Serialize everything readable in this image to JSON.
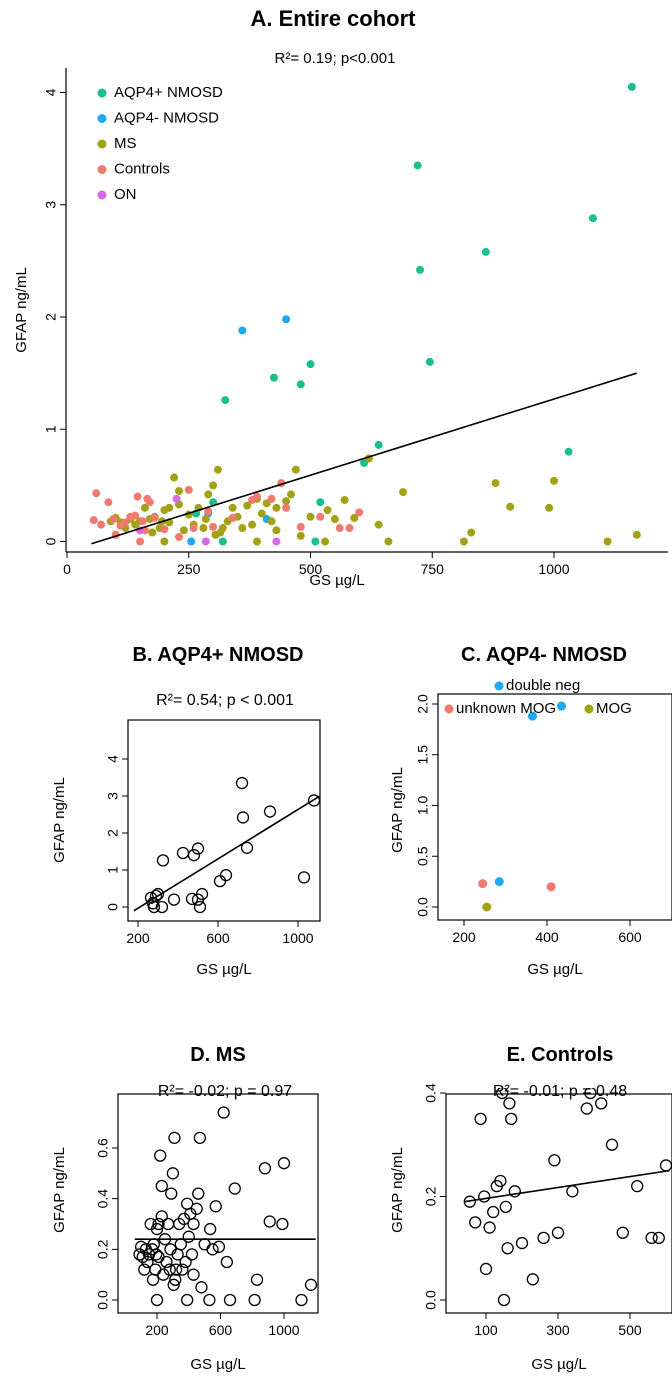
{
  "chart_data": [
    {
      "id": "A",
      "type": "scatter",
      "title": "A. Entire cohort",
      "subtitle": "R²= 0.19; p<0.001",
      "xlabel": "GS µg/L",
      "ylabel": "GFAP ng/mL",
      "xlim": [
        0,
        1200
      ],
      "ylim": [
        -0.1,
        4.2
      ],
      "xticks": [
        0,
        250,
        500,
        750,
        1000
      ],
      "yticks": [
        0,
        1,
        2,
        3,
        4
      ],
      "legend_position": "top-left",
      "regression_line": {
        "x": [
          50,
          1170
        ],
        "y": [
          -0.02,
          1.5
        ]
      },
      "series": [
        {
          "name": "AQP4+ NMOSD",
          "color": "#1bbf8f",
          "points": [
            [
              1160,
              4.05
            ],
            [
              720,
              3.35
            ],
            [
              1080,
              2.88
            ],
            [
              860,
              2.58
            ],
            [
              725,
              2.42
            ],
            [
              745,
              1.6
            ],
            [
              500,
              1.58
            ],
            [
              480,
              1.4
            ],
            [
              425,
              1.46
            ],
            [
              325,
              1.26
            ],
            [
              640,
              0.86
            ],
            [
              610,
              0.7
            ],
            [
              1030,
              0.8
            ],
            [
              520,
              0.35
            ],
            [
              300,
              0.35
            ],
            [
              320,
              0.0
            ],
            [
              510,
              0.0
            ],
            [
              265,
              0.25
            ]
          ]
        },
        {
          "name": "AQP4- NMOSD",
          "color": "#1fa9ee",
          "points": [
            [
              360,
              1.88
            ],
            [
              450,
              1.98
            ],
            [
              290,
              0.25
            ],
            [
              410,
              0.2
            ],
            [
              255,
              0.0
            ]
          ]
        },
        {
          "name": "MS",
          "color": "#a2a214",
          "points": [
            [
              1170,
              0.06
            ],
            [
              1110,
              0.0
            ],
            [
              1000,
              0.54
            ],
            [
              990,
              0.3
            ],
            [
              910,
              0.31
            ],
            [
              880,
              0.52
            ],
            [
              830,
              0.08
            ],
            [
              815,
              0.0
            ],
            [
              690,
              0.44
            ],
            [
              660,
              0.0
            ],
            [
              640,
              0.15
            ],
            [
              620,
              0.74
            ],
            [
              590,
              0.21
            ],
            [
              570,
              0.37
            ],
            [
              550,
              0.2
            ],
            [
              535,
              0.28
            ],
            [
              530,
              0.0
            ],
            [
              500,
              0.22
            ],
            [
              470,
              0.64
            ],
            [
              460,
              0.42
            ],
            [
              450,
              0.36
            ],
            [
              430,
              0.3
            ],
            [
              420,
              0.18
            ],
            [
              410,
              0.34
            ],
            [
              400,
              0.25
            ],
            [
              390,
              0.38
            ],
            [
              380,
              0.15
            ],
            [
              370,
              0.32
            ],
            [
              360,
              0.12
            ],
            [
              350,
              0.22
            ],
            [
              340,
              0.3
            ],
            [
              330,
              0.18
            ],
            [
              320,
              0.12
            ],
            [
              310,
              0.64
            ],
            [
              305,
              0.06
            ],
            [
              300,
              0.5
            ],
            [
              290,
              0.42
            ],
            [
              285,
              0.2
            ],
            [
              270,
              0.3
            ],
            [
              260,
              0.15
            ],
            [
              250,
              0.24
            ],
            [
              240,
              0.1
            ],
            [
              230,
              0.45
            ],
            [
              220,
              0.57
            ],
            [
              210,
              0.3
            ],
            [
              200,
              0.28
            ],
            [
              195,
              0.18
            ],
            [
              190,
              0.12
            ],
            [
              180,
              0.22
            ],
            [
              175,
              0.08
            ],
            [
              170,
              0.2
            ],
            [
              160,
              0.3
            ],
            [
              150,
              0.18
            ],
            [
              140,
              0.15
            ],
            [
              130,
              0.2
            ],
            [
              120,
              0.12
            ],
            [
              110,
              0.17
            ],
            [
              100,
              0.21
            ],
            [
              90,
              0.18
            ],
            [
              280,
              0.12
            ],
            [
              315,
              0.08
            ],
            [
              390,
              0.0
            ],
            [
              430,
              0.1
            ],
            [
              480,
              0.05
            ],
            [
              230,
              0.33
            ],
            [
              210,
              0.17
            ],
            [
              200,
              0.0
            ]
          ]
        },
        {
          "name": "Controls",
          "color": "#f07a70",
          "points": [
            [
              60,
              0.43
            ],
            [
              55,
              0.19
            ],
            [
              70,
              0.15
            ],
            [
              85,
              0.35
            ],
            [
              95,
              0.2
            ],
            [
              100,
              0.06
            ],
            [
              110,
              0.14
            ],
            [
              120,
              0.17
            ],
            [
              130,
              0.22
            ],
            [
              140,
              0.23
            ],
            [
              145,
              0.4
            ],
            [
              150,
              0.0
            ],
            [
              155,
              0.18
            ],
            [
              160,
              0.1
            ],
            [
              165,
              0.38
            ],
            [
              170,
              0.35
            ],
            [
              180,
              0.21
            ],
            [
              200,
              0.11
            ],
            [
              230,
              0.04
            ],
            [
              250,
              0.46
            ],
            [
              260,
              0.12
            ],
            [
              290,
              0.27
            ],
            [
              300,
              0.13
            ],
            [
              340,
              0.21
            ],
            [
              380,
              0.37
            ],
            [
              390,
              0.4
            ],
            [
              420,
              0.38
            ],
            [
              440,
              0.52
            ],
            [
              450,
              0.3
            ],
            [
              480,
              0.13
            ],
            [
              520,
              0.22
            ],
            [
              560,
              0.12
            ],
            [
              580,
              0.12
            ],
            [
              600,
              0.26
            ]
          ]
        },
        {
          "name": "ON",
          "color": "#d96ae5",
          "points": [
            [
              150,
              0.1
            ],
            [
              225,
              0.38
            ],
            [
              285,
              0.0
            ],
            [
              430,
              0.0
            ]
          ]
        }
      ]
    },
    {
      "id": "B",
      "type": "scatter",
      "title": "B. AQP4+ NMOSD",
      "subtitle": "R²= 0.54; p < 0.001",
      "xlabel": "GS µg/L",
      "ylabel": "GFAP ng/mL",
      "xlim": [
        180,
        1190
      ],
      "ylim": [
        -0.1,
        4.2
      ],
      "xticks": [
        200,
        600,
        1000
      ],
      "yticks": [
        0,
        1,
        2,
        3,
        4
      ],
      "regression_line": {
        "x": [
          180,
          1190
        ],
        "y": [
          -0.1,
          3.27
        ]
      },
      "points": [
        [
          1160,
          4.05
        ],
        [
          720,
          3.35
        ],
        [
          1080,
          2.88
        ],
        [
          860,
          2.58
        ],
        [
          725,
          2.42
        ],
        [
          745,
          1.6
        ],
        [
          500,
          1.58
        ],
        [
          480,
          1.4
        ],
        [
          425,
          1.46
        ],
        [
          325,
          1.26
        ],
        [
          640,
          0.86
        ],
        [
          610,
          0.7
        ],
        [
          1030,
          0.8
        ],
        [
          520,
          0.35
        ],
        [
          300,
          0.35
        ],
        [
          320,
          0.0
        ],
        [
          510,
          0.0
        ],
        [
          265,
          0.25
        ],
        [
          275,
          0.1
        ],
        [
          290,
          0.3
        ],
        [
          380,
          0.2
        ],
        [
          470,
          0.22
        ],
        [
          500,
          0.2
        ],
        [
          280,
          0.0
        ]
      ]
    },
    {
      "id": "C",
      "type": "scatter",
      "title": "C. AQP4- NMOSD",
      "xlabel": "GS µg/L",
      "ylabel": "GFAP ng/mL",
      "xlim": [
        200,
        680
      ],
      "ylim": [
        -0.05,
        2.05
      ],
      "xticks": [
        200,
        400,
        600
      ],
      "yticks": [
        0.0,
        0.5,
        1.0,
        1.5,
        2.0
      ],
      "yticklabels": [
        "0.0",
        "0.5",
        "1.0",
        "1.5",
        "2.0"
      ],
      "legend_position": "top",
      "series": [
        {
          "name": "double neg",
          "color": "#1fa9ee",
          "points": [
            [
              365,
              1.88
            ],
            [
              435,
              1.98
            ],
            [
              285,
              0.25
            ]
          ]
        },
        {
          "name": "unknown MOG",
          "color": "#f07a70",
          "points": [
            [
              245,
              0.23
            ],
            [
              410,
              0.2
            ]
          ]
        },
        {
          "name": "MOG",
          "color": "#a2a214",
          "points": [
            [
              255,
              0.0
            ]
          ]
        }
      ]
    },
    {
      "id": "D",
      "type": "scatter",
      "title": "D. MS",
      "subtitle": "R²= -0.02; p = 0.97",
      "xlabel": "GS µg/L",
      "ylabel": "GFAP ng/mL",
      "xlim": [
        60,
        1200
      ],
      "ylim": [
        -0.02,
        0.76
      ],
      "xticks": [
        200,
        600,
        1000
      ],
      "yticks": [
        0.0,
        0.2,
        0.4,
        0.6
      ],
      "yticklabels": [
        "0.0",
        "0.2",
        "0.4",
        "0.6"
      ],
      "regression_line": {
        "x": [
          60,
          1200
        ],
        "y": [
          0.24,
          0.24
        ]
      },
      "points": [
        [
          1170,
          0.06
        ],
        [
          1110,
          0.0
        ],
        [
          1000,
          0.54
        ],
        [
          990,
          0.3
        ],
        [
          910,
          0.31
        ],
        [
          880,
          0.52
        ],
        [
          830,
          0.08
        ],
        [
          815,
          0.0
        ],
        [
          690,
          0.44
        ],
        [
          660,
          0.0
        ],
        [
          640,
          0.15
        ],
        [
          620,
          0.74
        ],
        [
          590,
          0.21
        ],
        [
          570,
          0.37
        ],
        [
          550,
          0.2
        ],
        [
          535,
          0.28
        ],
        [
          530,
          0.0
        ],
        [
          500,
          0.22
        ],
        [
          470,
          0.64
        ],
        [
          460,
          0.42
        ],
        [
          450,
          0.36
        ],
        [
          430,
          0.3
        ],
        [
          420,
          0.18
        ],
        [
          410,
          0.34
        ],
        [
          400,
          0.25
        ],
        [
          390,
          0.38
        ],
        [
          380,
          0.15
        ],
        [
          370,
          0.32
        ],
        [
          360,
          0.12
        ],
        [
          350,
          0.22
        ],
        [
          340,
          0.3
        ],
        [
          330,
          0.18
        ],
        [
          320,
          0.12
        ],
        [
          310,
          0.64
        ],
        [
          305,
          0.06
        ],
        [
          300,
          0.5
        ],
        [
          290,
          0.42
        ],
        [
          285,
          0.2
        ],
        [
          270,
          0.3
        ],
        [
          260,
          0.15
        ],
        [
          250,
          0.24
        ],
        [
          240,
          0.1
        ],
        [
          230,
          0.45
        ],
        [
          220,
          0.57
        ],
        [
          210,
          0.3
        ],
        [
          200,
          0.28
        ],
        [
          195,
          0.18
        ],
        [
          190,
          0.12
        ],
        [
          180,
          0.22
        ],
        [
          175,
          0.08
        ],
        [
          170,
          0.2
        ],
        [
          160,
          0.3
        ],
        [
          150,
          0.18
        ],
        [
          140,
          0.15
        ],
        [
          130,
          0.2
        ],
        [
          120,
          0.12
        ],
        [
          110,
          0.17
        ],
        [
          100,
          0.21
        ],
        [
          90,
          0.18
        ],
        [
          280,
          0.12
        ],
        [
          315,
          0.08
        ],
        [
          390,
          0.0
        ],
        [
          430,
          0.1
        ],
        [
          480,
          0.05
        ],
        [
          230,
          0.33
        ],
        [
          210,
          0.17
        ],
        [
          200,
          0.0
        ]
      ]
    },
    {
      "id": "E",
      "type": "scatter",
      "title": "E. Controls",
      "subtitle": "R²= -0.01; p = 0.48",
      "xlabel": "GS µg/L",
      "ylabel": "GFAP ng/mL",
      "xlim": [
        40,
        610
      ],
      "ylim": [
        -0.01,
        0.54
      ],
      "xticks": [
        100,
        300,
        500
      ],
      "yticks": [
        0.0,
        0.2,
        0.4
      ],
      "yticklabels": [
        "0.0",
        "0.2",
        "0.4"
      ],
      "regression_line": {
        "x": [
          40,
          610
        ],
        "y": [
          0.19,
          0.25
        ]
      },
      "points": [
        [
          60,
          0.43
        ],
        [
          55,
          0.19
        ],
        [
          70,
          0.15
        ],
        [
          85,
          0.35
        ],
        [
          95,
          0.2
        ],
        [
          100,
          0.06
        ],
        [
          110,
          0.14
        ],
        [
          120,
          0.17
        ],
        [
          130,
          0.22
        ],
        [
          140,
          0.23
        ],
        [
          145,
          0.4
        ],
        [
          150,
          0.0
        ],
        [
          155,
          0.18
        ],
        [
          160,
          0.1
        ],
        [
          165,
          0.38
        ],
        [
          170,
          0.35
        ],
        [
          180,
          0.21
        ],
        [
          200,
          0.11
        ],
        [
          230,
          0.04
        ],
        [
          250,
          0.46
        ],
        [
          260,
          0.12
        ],
        [
          290,
          0.27
        ],
        [
          300,
          0.13
        ],
        [
          340,
          0.21
        ],
        [
          380,
          0.37
        ],
        [
          390,
          0.4
        ],
        [
          420,
          0.38
        ],
        [
          440,
          0.52
        ],
        [
          450,
          0.3
        ],
        [
          480,
          0.13
        ],
        [
          520,
          0.22
        ],
        [
          560,
          0.12
        ],
        [
          580,
          0.12
        ],
        [
          600,
          0.26
        ]
      ]
    }
  ]
}
